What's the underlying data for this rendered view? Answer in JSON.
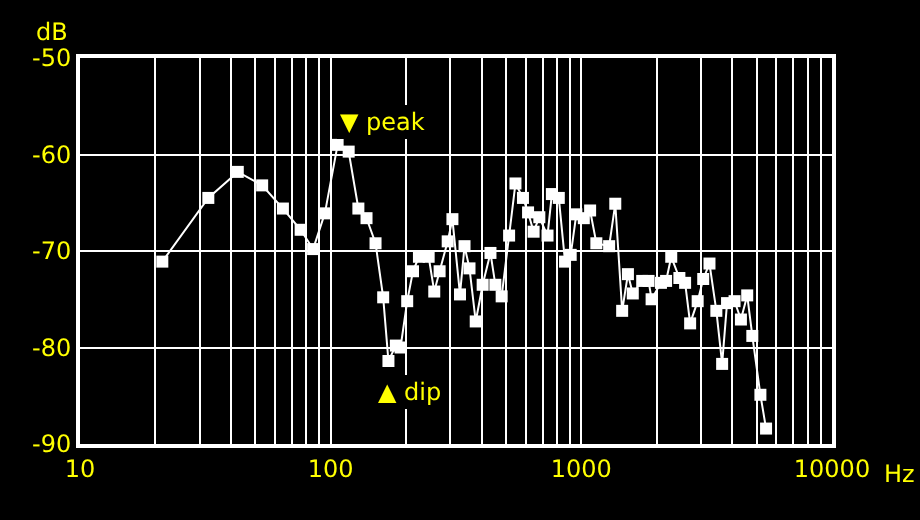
{
  "chart_data": {
    "type": "line",
    "xlabel": "Hz",
    "ylabel": "dB",
    "log": "x",
    "grid": true,
    "marker": "square",
    "line_style": "solid",
    "legend": false,
    "xlim": [
      10,
      10000
    ],
    "xticks": [
      10,
      100,
      1000,
      10000
    ],
    "ylim": [
      -90,
      -50
    ],
    "yticks": [
      -90,
      -80,
      -70,
      -60,
      -50
    ],
    "annotations": [
      "▼ peak",
      "▲ dip"
    ],
    "series": [
      {
        "color": "#ffffff",
        "x": [
          21.3,
          32.5,
          42.6,
          53.3,
          64.5,
          75.9,
          85.1,
          94.8,
          106.6,
          118,
          129,
          139,
          151,
          162,
          170,
          182,
          190,
          202,
          213,
          225,
          246,
          259,
          272,
          293,
          306,
          328,
          342,
          358,
          379,
          404,
          434,
          454,
          481,
          515,
          546,
          585,
          613,
          645,
          680,
          733,
          763,
          813,
          861,
          907,
          955,
          1023,
          1084,
          1148,
          1291,
          1366,
          1455,
          1534,
          1604,
          1749,
          1854,
          1907,
          2078,
          2178,
          2284,
          2461,
          2594,
          2717,
          2911,
          3064,
          3245,
          3457,
          3645,
          3813,
          4086,
          4332,
          4590,
          4810,
          5180,
          5457
        ],
        "values": [
          -71.1,
          -64.5,
          -61.8,
          -63.2,
          -65.6,
          -67.8,
          -69.8,
          -66.1,
          -59.0,
          -59.7,
          -65.6,
          -66.6,
          -69.2,
          -74.8,
          -81.4,
          -79.8,
          -80.0,
          -75.2,
          -72.1,
          -70.6,
          -70.6,
          -74.2,
          -72.1,
          -69.0,
          -66.7,
          -74.5,
          -69.5,
          -71.8,
          -77.3,
          -73.5,
          -70.2,
          -73.5,
          -74.7,
          -68.4,
          -63.0,
          -64.5,
          -66.0,
          -68.0,
          -66.5,
          -68.4,
          -64.1,
          -64.5,
          -71.1,
          -70.4,
          -66.2,
          -66.6,
          -65.8,
          -69.2,
          -69.5,
          -65.1,
          -76.2,
          -72.4,
          -74.4,
          -73.1,
          -73.1,
          -75.0,
          -73.3,
          -73.1,
          -70.6,
          -72.8,
          -73.3,
          -77.5,
          -75.2,
          -72.9,
          -71.3,
          -76.2,
          -81.7,
          -75.4,
          -75.2,
          -77.1,
          -74.6,
          -78.8,
          -84.9,
          -88.4
        ]
      }
    ]
  }
}
